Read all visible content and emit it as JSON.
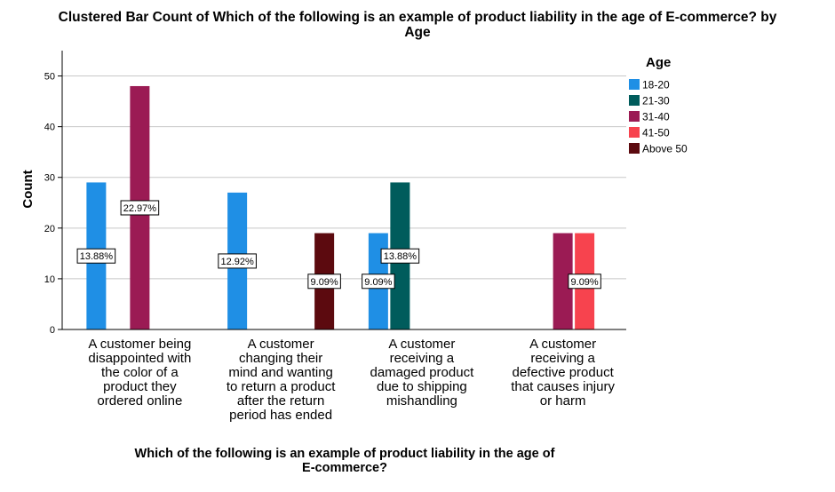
{
  "chart_data": {
    "type": "bar",
    "title": "Clustered Bar Count of Which of the following is an example of product liability in the age of E-commerce? by Age",
    "xlabel": "Which of the following is an example of product liability in the age of E-commerce?",
    "ylabel": "Count",
    "ylim": [
      0,
      55
    ],
    "yticks": [
      0,
      10,
      20,
      30,
      40,
      50
    ],
    "grid": "horizontal",
    "legend_position": "right",
    "legend_title": "Age",
    "categories": [
      "A customer being disappointed with the color of a product they ordered online",
      "A customer changing their mind and wanting to return a product after the return period has ended",
      "A customer receiving a damaged product due to shipping mishandling",
      "A customer receiving a defective product that causes injury or harm"
    ],
    "series": [
      {
        "name": "18-20",
        "color": "#1f8fe5",
        "values": [
          29,
          27,
          19,
          0
        ],
        "labels": [
          "13.88%",
          "12.92%",
          "9.09%",
          ""
        ]
      },
      {
        "name": "21-30",
        "color": "#005c5c",
        "values": [
          0,
          0,
          29,
          0
        ],
        "labels": [
          "",
          "",
          "13.88%",
          ""
        ]
      },
      {
        "name": "31-40",
        "color": "#9b1b54",
        "values": [
          48,
          0,
          0,
          19
        ],
        "labels": [
          "22.97%",
          "",
          "",
          ""
        ]
      },
      {
        "name": "41-50",
        "color": "#f7434e",
        "values": [
          0,
          0,
          0,
          19
        ],
        "labels": [
          "",
          "",
          "",
          "9.09%"
        ]
      },
      {
        "name": "Above 50",
        "color": "#5c0a0f",
        "values": [
          0,
          19,
          0,
          0
        ],
        "labels": [
          "",
          "9.09%",
          "",
          ""
        ]
      }
    ]
  },
  "display": {
    "title_lines": [
      "Clustered Bar Count of Which of the following is an example of product liability in the age of E-commerce? by",
      "Age"
    ],
    "xlabel_lines": [
      "Which of the following is an example of product liability in the age of",
      "E-commerce?"
    ],
    "category_lines": [
      [
        "A customer being",
        "disappointed with",
        "the color of a",
        "product they",
        "ordered online"
      ],
      [
        "A customer",
        "changing their",
        "mind and wanting",
        "to return a product",
        "after the return",
        "period has ended"
      ],
      [
        "A customer",
        "receiving a",
        "damaged product",
        "due to shipping",
        "mishandling"
      ],
      [
        "A customer",
        "receiving a",
        "defective product",
        "that causes injury",
        "or harm"
      ]
    ]
  }
}
